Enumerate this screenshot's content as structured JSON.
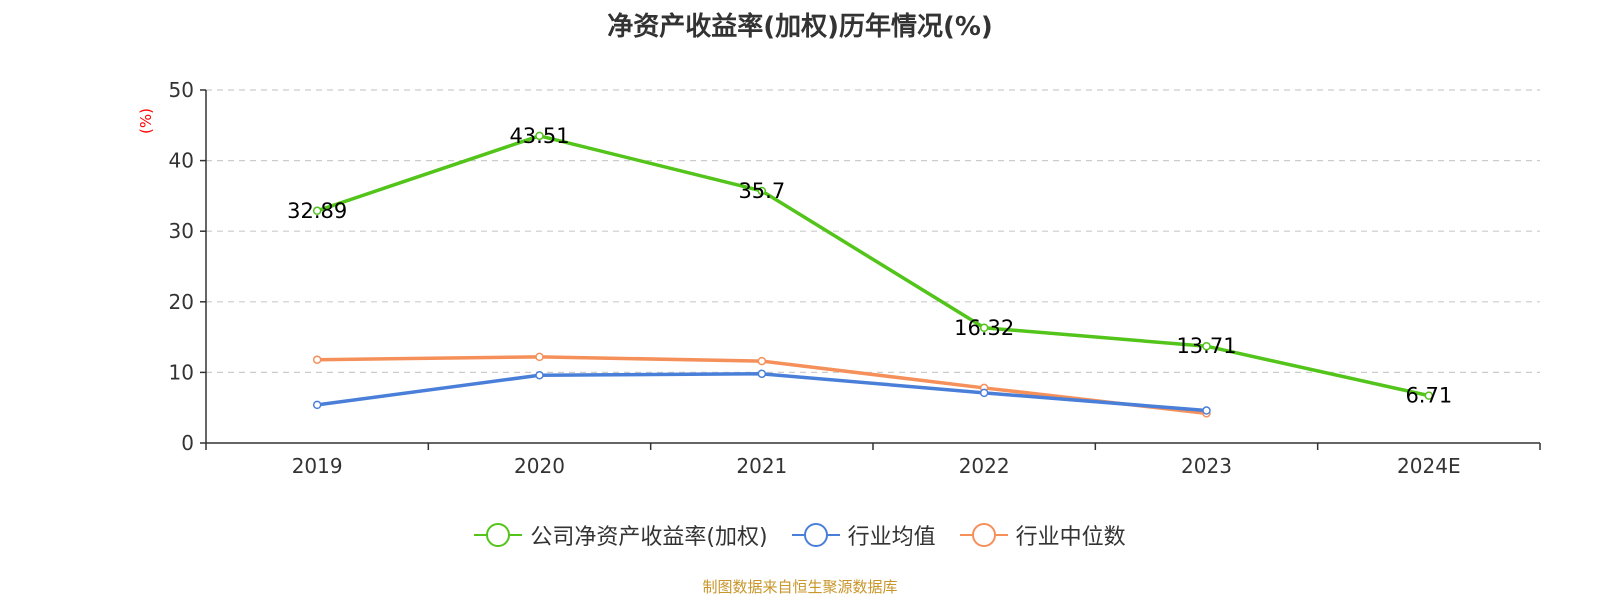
{
  "chart_data": {
    "type": "line",
    "title": "净资产收益率(加权)历年情况(%)",
    "ylabel": "(%)",
    "xlabel": "",
    "categories": [
      "2019",
      "2020",
      "2021",
      "2022",
      "2023",
      "2024E"
    ],
    "ylim": [
      0,
      50
    ],
    "yticks": [
      0,
      10,
      20,
      30,
      40,
      50
    ],
    "grid": true,
    "legend_position": "bottom",
    "series": [
      {
        "name": "公司净资产收益率(加权)",
        "color": "#52c41a",
        "values": [
          32.89,
          43.51,
          35.7,
          16.32,
          13.71,
          6.71
        ],
        "labels": [
          "32.89",
          "43.51",
          "35.7",
          "16.32",
          "13.71",
          "6.71"
        ]
      },
      {
        "name": "行业均值",
        "color": "#4a7fd9",
        "values": [
          5.4,
          9.6,
          9.8,
          7.1,
          4.6,
          null
        ]
      },
      {
        "name": "行业中位数",
        "color": "#f5905a",
        "values": [
          11.8,
          12.2,
          11.6,
          7.8,
          4.2,
          null
        ]
      }
    ]
  },
  "source": "制图数据来自恒生聚源数据库"
}
